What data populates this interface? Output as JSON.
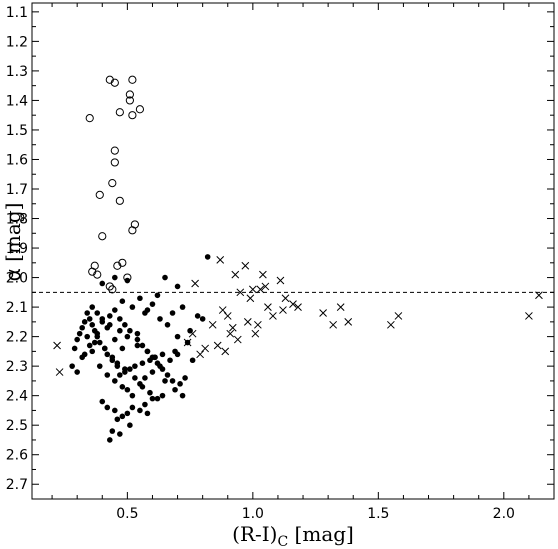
{
  "chart_data": {
    "type": "scatter",
    "title": "",
    "xlabel_main": "(R-I)",
    "xlabel_sub": "C",
    "xlabel_unit": " [mag]",
    "ylabel_symbol": "α",
    "ylabel_unit": " [mag]",
    "xlim": [
      0.12,
      2.2
    ],
    "ylim": [
      2.75,
      1.07
    ],
    "y_inverted": true,
    "grid": false,
    "legend": "none",
    "x_ticks": [
      0.5,
      1.0,
      1.5,
      2.0
    ],
    "x_tick_labels": [
      "0.5",
      "1.0",
      "1.5",
      "2.0"
    ],
    "y_ticks": [
      1.1,
      1.2,
      1.3,
      1.4,
      1.5,
      1.6,
      1.7,
      1.8,
      1.9,
      2.0,
      2.1,
      2.2,
      2.3,
      2.4,
      2.5,
      2.6,
      2.7
    ],
    "y_tick_labels": [
      "1.1",
      "1.2",
      "1.3",
      "1.4",
      "1.5",
      "1.6",
      "1.7",
      "1.8",
      "1.9",
      "2.0",
      "2.1",
      "2.2",
      "2.3",
      "2.4",
      "2.5",
      "2.6",
      "2.7"
    ],
    "reference_line": {
      "y": 2.05,
      "style": "dashed"
    },
    "colors": {
      "marker": "#000000",
      "axes": "#000000",
      "background": "#ffffff"
    },
    "series": [
      {
        "marker": "open-circle",
        "x": [
          0.43,
          0.45,
          0.52,
          0.51,
          0.51,
          0.55,
          0.35,
          0.52,
          0.47,
          0.45,
          0.45,
          0.44,
          0.39,
          0.47,
          0.4,
          0.53,
          0.52,
          0.48,
          0.46,
          0.37,
          0.36,
          0.38,
          0.5,
          0.43,
          0.44
        ],
        "y": [
          1.33,
          1.34,
          1.33,
          1.38,
          1.4,
          1.43,
          1.46,
          1.45,
          1.44,
          1.57,
          1.61,
          1.68,
          1.72,
          1.74,
          1.86,
          1.82,
          1.84,
          1.95,
          1.96,
          1.96,
          1.98,
          1.99,
          2.0,
          2.03,
          2.04
        ]
      },
      {
        "marker": "filled-circle",
        "x": [
          0.45,
          0.4,
          0.5,
          0.82,
          0.65,
          0.7,
          0.62,
          0.55,
          0.48,
          0.6,
          0.72,
          0.58,
          0.68,
          0.78,
          0.8,
          0.75,
          0.52,
          0.57,
          0.63,
          0.66,
          0.7,
          0.74,
          0.69,
          0.64,
          0.61,
          0.59,
          0.56,
          0.53,
          0.51,
          0.49,
          0.47,
          0.46,
          0.44,
          0.42,
          0.41,
          0.39,
          0.38,
          0.37,
          0.36,
          0.35,
          0.34,
          0.33,
          0.32,
          0.31,
          0.3,
          0.29,
          0.28,
          0.3,
          0.32,
          0.35,
          0.38,
          0.4,
          0.43,
          0.45,
          0.47,
          0.49,
          0.51,
          0.54,
          0.56,
          0.58,
          0.6,
          0.62,
          0.64,
          0.66,
          0.68,
          0.71,
          0.73,
          0.76,
          0.33,
          0.36,
          0.39,
          0.42,
          0.45,
          0.48,
          0.5,
          0.52,
          0.55,
          0.57,
          0.6,
          0.63,
          0.67,
          0.7,
          0.34,
          0.37,
          0.41,
          0.44,
          0.46,
          0.49,
          0.53,
          0.56,
          0.59,
          0.62,
          0.65,
          0.36,
          0.38,
          0.4,
          0.43,
          0.47,
          0.5,
          0.54,
          0.58,
          0.61,
          0.69,
          0.72,
          0.4,
          0.42,
          0.45,
          0.48,
          0.51,
          0.55,
          0.57,
          0.6,
          0.64,
          0.44,
          0.46,
          0.5,
          0.52,
          0.43,
          0.47,
          0.58,
          0.45,
          0.54,
          0.42,
          0.48
        ],
        "y": [
          2.0,
          2.02,
          2.01,
          1.93,
          2.0,
          2.03,
          2.06,
          2.07,
          2.08,
          2.09,
          2.1,
          2.11,
          2.12,
          2.13,
          2.14,
          2.18,
          2.1,
          2.12,
          2.14,
          2.16,
          2.2,
          2.22,
          2.25,
          2.26,
          2.27,
          2.28,
          2.29,
          2.3,
          2.31,
          2.32,
          2.33,
          2.3,
          2.28,
          2.26,
          2.24,
          2.22,
          2.2,
          2.18,
          2.16,
          2.14,
          2.12,
          2.15,
          2.17,
          2.19,
          2.21,
          2.24,
          2.3,
          2.32,
          2.27,
          2.23,
          2.19,
          2.15,
          2.13,
          2.11,
          2.14,
          2.16,
          2.18,
          2.21,
          2.23,
          2.25,
          2.27,
          2.29,
          2.31,
          2.33,
          2.35,
          2.36,
          2.34,
          2.28,
          2.26,
          2.25,
          2.3,
          2.33,
          2.35,
          2.37,
          2.38,
          2.4,
          2.36,
          2.34,
          2.32,
          2.3,
          2.28,
          2.26,
          2.2,
          2.22,
          2.24,
          2.27,
          2.29,
          2.31,
          2.34,
          2.37,
          2.39,
          2.41,
          2.35,
          2.1,
          2.12,
          2.14,
          2.16,
          2.18,
          2.2,
          2.23,
          2.25,
          2.27,
          2.38,
          2.4,
          2.42,
          2.44,
          2.45,
          2.47,
          2.5,
          2.45,
          2.43,
          2.41,
          2.4,
          2.52,
          2.48,
          2.46,
          2.44,
          2.55,
          2.53,
          2.46,
          2.21,
          2.19,
          2.17,
          2.24
        ]
      },
      {
        "marker": "cross",
        "x": [
          0.87,
          0.77,
          0.93,
          0.97,
          1.04,
          1.11,
          1.0,
          0.95,
          1.05,
          1.03,
          0.88,
          0.99,
          1.13,
          0.9,
          1.06,
          1.16,
          0.84,
          0.92,
          0.98,
          1.12,
          1.18,
          0.91,
          1.02,
          1.08,
          1.28,
          1.38,
          1.35,
          1.32,
          1.55,
          1.58,
          2.14,
          2.1,
          0.94,
          0.86,
          0.81,
          0.79,
          0.76,
          0.74,
          0.89,
          1.01,
          0.22,
          0.23
        ],
        "y": [
          1.94,
          2.02,
          1.99,
          1.96,
          1.99,
          2.01,
          2.04,
          2.05,
          2.03,
          2.04,
          2.11,
          2.07,
          2.07,
          2.13,
          2.1,
          2.09,
          2.16,
          2.17,
          2.15,
          2.11,
          2.1,
          2.19,
          2.16,
          2.13,
          2.12,
          2.15,
          2.1,
          2.16,
          2.16,
          2.13,
          2.06,
          2.13,
          2.21,
          2.23,
          2.24,
          2.26,
          2.19,
          2.22,
          2.25,
          2.19,
          2.23,
          2.32
        ]
      }
    ]
  }
}
